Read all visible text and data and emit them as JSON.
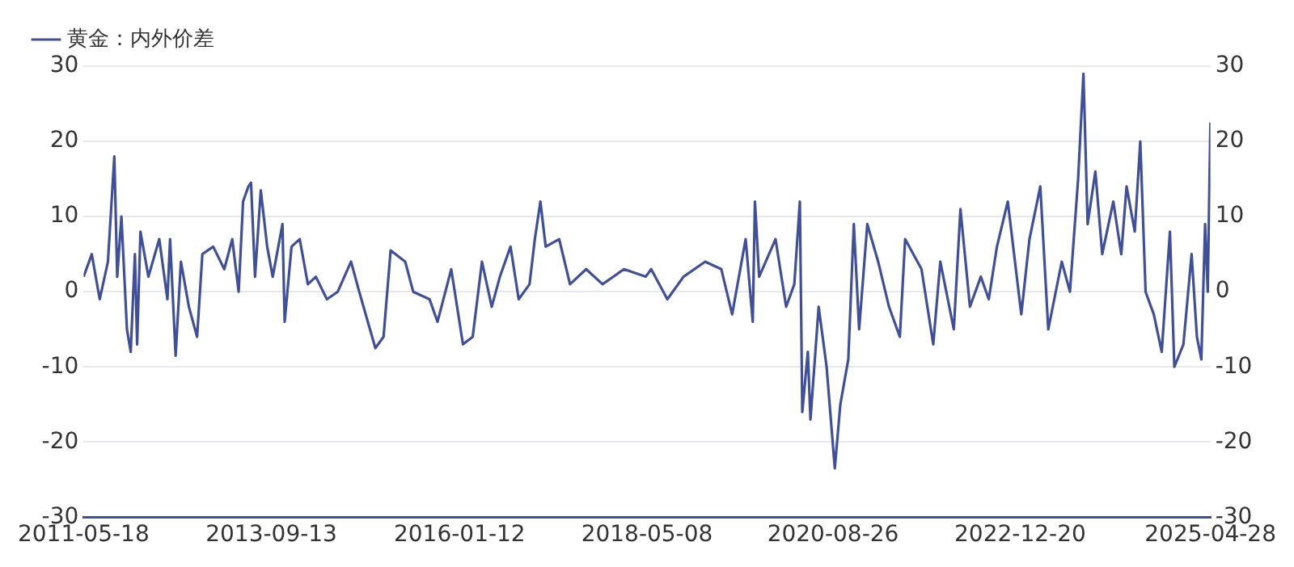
{
  "chart_data": {
    "type": "line",
    "legend": "top left",
    "grid": "y",
    "line_style": "solid",
    "marker": "none",
    "xlim": [
      "2011-05-18",
      "2025-04-28"
    ],
    "xticks": [
      "2011-05-18",
      "2013-09-13",
      "2016-01-12",
      "2018-05-08",
      "2020-08-26",
      "2022-12-20",
      "2025-04-28"
    ],
    "ylim": [
      -30,
      30
    ],
    "yticks": [
      -30,
      -20,
      -10,
      0,
      10,
      20,
      30
    ],
    "y2lim": [
      -30,
      30
    ],
    "y2ticks": [
      -30,
      -20,
      -10,
      0,
      10,
      20,
      30
    ],
    "x": [
      "2011-05-18",
      "2011-06-24",
      "2011-07-30",
      "2011-09-05",
      "2011-10-04",
      "2011-10-17",
      "2011-11-05",
      "2011-11-30",
      "2011-12-17",
      "2012-01-05",
      "2012-01-15",
      "2012-01-30",
      "2012-03-06",
      "2012-04-24",
      "2012-05-31",
      "2012-06-12",
      "2012-07-07",
      "2012-07-31",
      "2012-09-05",
      "2012-10-12",
      "2012-11-05",
      "2012-12-24",
      "2013-02-12",
      "2013-03-20",
      "2013-04-18",
      "2013-05-08",
      "2013-06-01",
      "2013-06-13",
      "2013-07-01",
      "2013-07-27",
      "2013-08-25",
      "2013-09-19",
      "2013-11-02",
      "2013-11-12",
      "2013-12-13",
      "2014-01-19",
      "2014-02-25",
      "2014-04-02",
      "2014-05-22",
      "2014-07-10",
      "2014-09-08",
      "2014-10-15",
      "2014-12-27",
      "2015-02-02",
      "2015-03-06",
      "2015-05-11",
      "2015-06-16",
      "2015-08-29",
      "2015-10-04",
      "2015-12-05",
      "2016-01-27",
      "2016-03-11",
      "2016-04-22",
      "2016-06-05",
      "2016-07-12",
      "2016-08-29",
      "2016-10-05",
      "2016-11-23",
      "2016-12-17",
      "2017-01-11",
      "2017-02-04",
      "2017-04-06",
      "2017-05-25",
      "2017-08-06",
      "2017-10-19",
      "2018-01-24",
      "2018-05-02",
      "2018-05-27",
      "2018-08-08",
      "2018-10-20",
      "2019-01-26",
      "2019-04-09",
      "2019-05-28",
      "2019-07-28",
      "2019-08-29",
      "2019-09-08",
      "2019-09-27",
      "2019-12-10",
      "2020-01-27",
      "2020-03-04",
      "2020-03-29",
      "2020-04-09",
      "2020-05-04",
      "2020-05-16",
      "2020-06-22",
      "2020-07-28",
      "2020-09-03",
      "2020-09-28",
      "2020-11-03",
      "2020-11-28",
      "2020-12-22",
      "2021-01-28",
      "2021-03-18",
      "2021-05-06",
      "2021-06-24",
      "2021-07-18",
      "2021-09-30",
      "2021-11-22",
      "2021-12-24",
      "2022-02-23",
      "2022-03-25",
      "2022-05-07",
      "2022-06-25",
      "2022-07-31",
      "2022-09-06",
      "2022-10-25",
      "2022-12-25",
      "2023-01-31",
      "2023-03-21",
      "2023-04-26",
      "2023-06-26",
      "2023-08-02",
      "2023-09-08",
      "2023-10-02",
      "2023-10-21",
      "2023-11-25",
      "2023-12-26",
      "2024-02-14",
      "2024-03-21",
      "2024-04-14",
      "2024-05-21",
      "2024-06-15",
      "2024-07-09",
      "2024-08-15",
      "2024-09-20",
      "2024-10-27",
      "2024-11-16",
      "2024-12-27",
      "2025-02-02",
      "2025-02-26",
      "2025-03-18",
      "2025-04-04",
      "2025-04-16",
      "2025-04-28"
    ],
    "series": [
      {
        "name": "黄金：内外价差",
        "color": "#3f4f9a",
        "values": [
          2,
          5,
          -1,
          4,
          18,
          2,
          10,
          -5,
          -8,
          5,
          -7,
          8,
          2,
          7,
          -1,
          7,
          -8.5,
          4,
          -2,
          -6,
          5,
          6,
          3,
          7,
          0,
          12,
          14,
          14.5,
          2,
          13.5,
          6,
          2,
          9,
          -4,
          6,
          7,
          1,
          2,
          -1,
          0,
          4,
          0,
          -7.5,
          -6,
          5.5,
          4,
          0,
          -1,
          -4,
          3,
          -7,
          -6,
          4,
          -2,
          2,
          6,
          -1,
          1,
          7,
          12,
          6,
          7,
          1,
          3,
          1,
          3,
          2,
          3,
          -1,
          2,
          4,
          3,
          -3,
          7,
          -4,
          12,
          2,
          7,
          -2,
          1,
          12,
          -16,
          -8,
          -17,
          -2,
          -10,
          -23.5,
          -15,
          -9,
          9,
          -5,
          9,
          4,
          -2,
          -6,
          7,
          3,
          -7,
          4,
          -5,
          11,
          -2,
          2,
          -1,
          6,
          12,
          -3,
          7,
          14,
          -5,
          4,
          0,
          15,
          29,
          9,
          16,
          5,
          12,
          5,
          14,
          8,
          20,
          0,
          -3,
          -8,
          8,
          -10,
          -7,
          5,
          -6,
          -9,
          9,
          0,
          22.5
        ]
      }
    ]
  }
}
